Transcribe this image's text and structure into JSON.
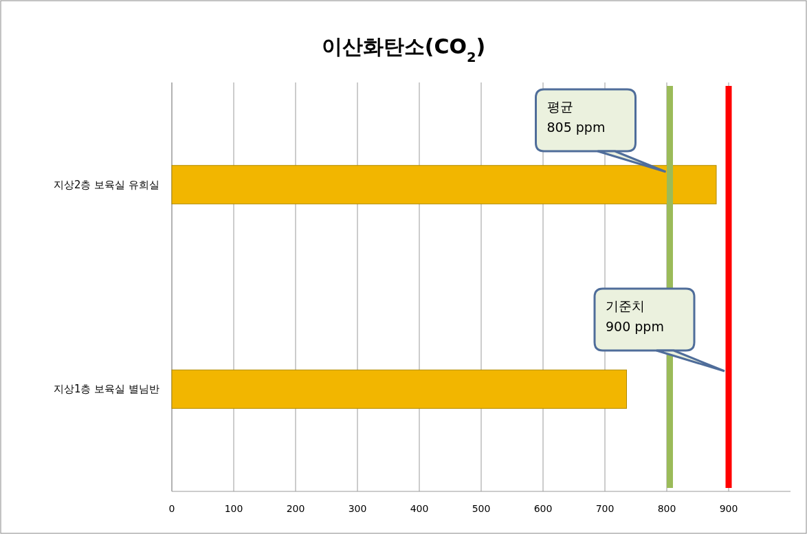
{
  "chart_data": {
    "type": "bar",
    "orientation": "horizontal",
    "title": "이산화탄소(CO$_{2}$)",
    "categories": [
      "지상2층 보육실 유희실",
      "지상1층 보육실 별님반"
    ],
    "values": [
      880,
      735
    ],
    "color": "#f2b600",
    "xlim": [
      0,
      1000
    ],
    "xticks": [
      0,
      100,
      200,
      300,
      400,
      500,
      600,
      700,
      800,
      900
    ],
    "grid": "x",
    "ref_lines": [
      {
        "axis": "x",
        "value": 805,
        "label": "평균\n805 ppm",
        "color": "#9bbb59"
      },
      {
        "axis": "x",
        "value": 900,
        "label": "기준치\n900 ppm",
        "color": "#ff0000"
      }
    ]
  }
}
